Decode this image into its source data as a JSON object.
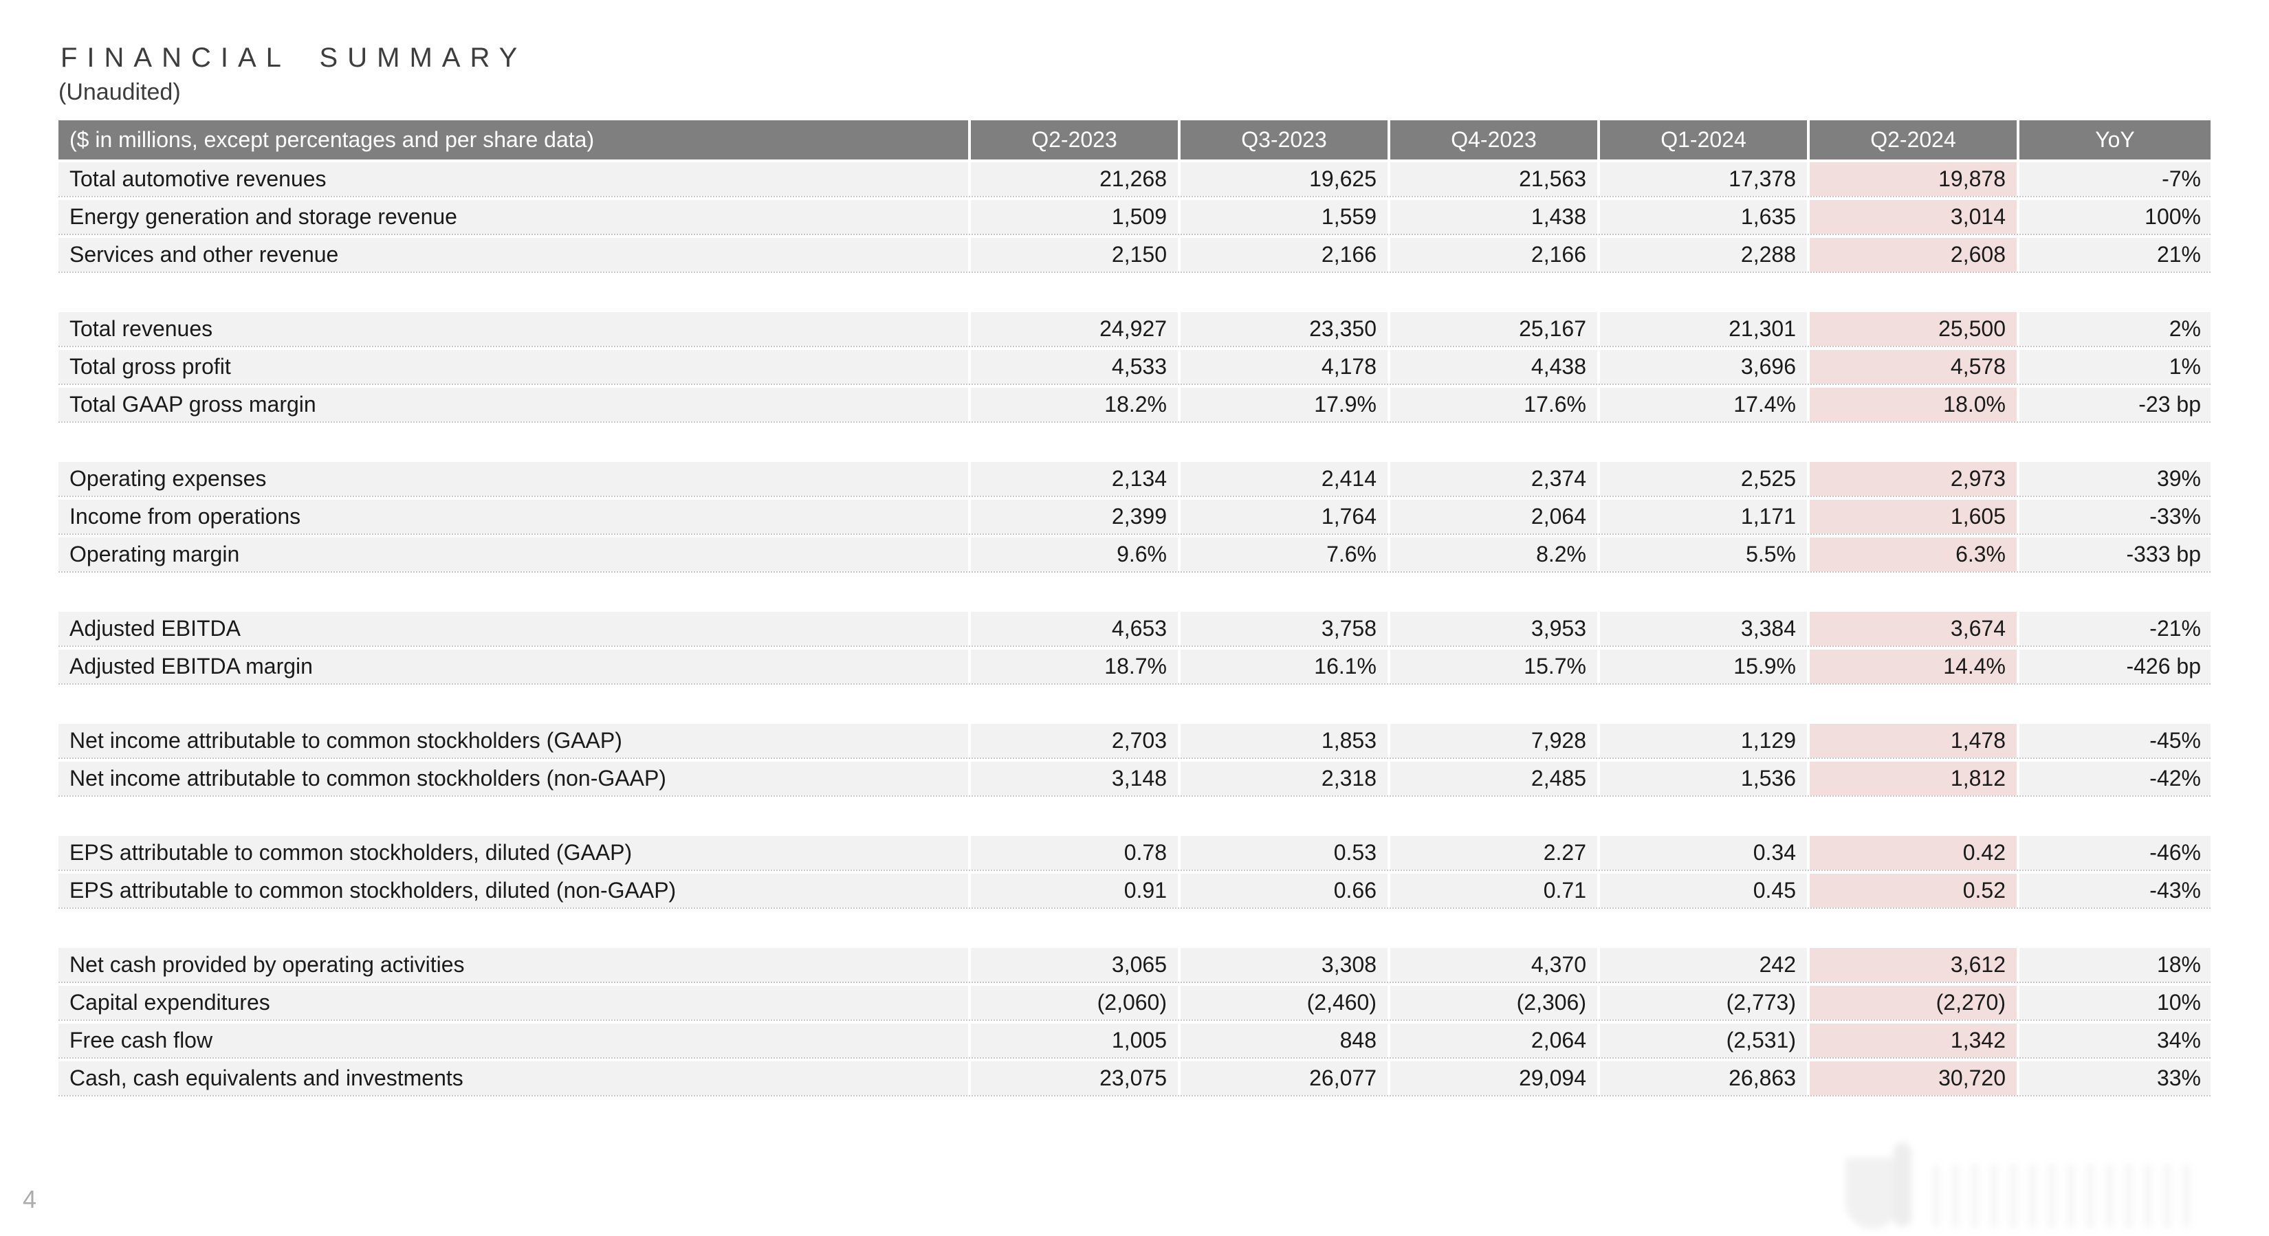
{
  "title": "FINANCIAL SUMMARY",
  "subtitle": "(Unaudited)",
  "page_number": "4",
  "colors": {
    "header_bg": "#7f7f7f",
    "header_text": "#ffffff",
    "row_bg": "#f2f2f2",
    "highlight_bg": "#f2dedc",
    "title_text": "#3d3d3d"
  },
  "table": {
    "header": [
      "($ in millions, except percentages and per share data)",
      "Q2-2023",
      "Q3-2023",
      "Q4-2023",
      "Q1-2024",
      "Q2-2024",
      "YoY"
    ],
    "highlight_column": "Q2-2024",
    "groups": [
      {
        "rows": [
          {
            "label": "Total automotive revenues",
            "values": [
              "21,268",
              "19,625",
              "21,563",
              "17,378",
              "19,878",
              "-7%"
            ]
          },
          {
            "label": "Energy generation and storage revenue",
            "values": [
              "1,509",
              "1,559",
              "1,438",
              "1,635",
              "3,014",
              "100%"
            ]
          },
          {
            "label": "Services and other revenue",
            "values": [
              "2,150",
              "2,166",
              "2,166",
              "2,288",
              "2,608",
              "21%"
            ]
          }
        ]
      },
      {
        "rows": [
          {
            "label": "Total revenues",
            "values": [
              "24,927",
              "23,350",
              "25,167",
              "21,301",
              "25,500",
              "2%"
            ]
          },
          {
            "label": "Total gross profit",
            "values": [
              "4,533",
              "4,178",
              "4,438",
              "3,696",
              "4,578",
              "1%"
            ]
          },
          {
            "label": "Total GAAP gross margin",
            "values": [
              "18.2%",
              "17.9%",
              "17.6%",
              "17.4%",
              "18.0%",
              "-23 bp"
            ]
          }
        ]
      },
      {
        "rows": [
          {
            "label": "Operating expenses",
            "values": [
              "2,134",
              "2,414",
              "2,374",
              "2,525",
              "2,973",
              "39%"
            ]
          },
          {
            "label": "Income from operations",
            "values": [
              "2,399",
              "1,764",
              "2,064",
              "1,171",
              "1,605",
              "-33%"
            ]
          },
          {
            "label": "Operating margin",
            "values": [
              "9.6%",
              "7.6%",
              "8.2%",
              "5.5%",
              "6.3%",
              "-333 bp"
            ]
          }
        ]
      },
      {
        "rows": [
          {
            "label": "Adjusted EBITDA",
            "values": [
              "4,653",
              "3,758",
              "3,953",
              "3,384",
              "3,674",
              "-21%"
            ]
          },
          {
            "label": "Adjusted EBITDA margin",
            "values": [
              "18.7%",
              "16.1%",
              "15.7%",
              "15.9%",
              "14.4%",
              "-426 bp"
            ]
          }
        ]
      },
      {
        "rows": [
          {
            "label": "Net income attributable to common stockholders (GAAP)",
            "values": [
              "2,703",
              "1,853",
              "7,928",
              "1,129",
              "1,478",
              "-45%"
            ]
          },
          {
            "label": "Net income attributable to common stockholders (non-GAAP)",
            "values": [
              "3,148",
              "2,318",
              "2,485",
              "1,536",
              "1,812",
              "-42%"
            ]
          }
        ]
      },
      {
        "rows": [
          {
            "label": "EPS attributable to common stockholders, diluted (GAAP)",
            "values": [
              "0.78",
              "0.53",
              "2.27",
              "0.34",
              "0.42",
              "-46%"
            ]
          },
          {
            "label": "EPS attributable to common stockholders, diluted (non-GAAP)",
            "values": [
              "0.91",
              "0.66",
              "0.71",
              "0.45",
              "0.52",
              "-43%"
            ]
          }
        ]
      },
      {
        "rows": [
          {
            "label": "Net cash provided by operating activities",
            "values": [
              "3,065",
              "3,308",
              "4,370",
              "242",
              "3,612",
              "18%"
            ]
          },
          {
            "label": "Capital expenditures",
            "values": [
              "(2,060)",
              "(2,460)",
              "(2,306)",
              "(2,773)",
              "(2,270)",
              "10%"
            ]
          },
          {
            "label": "Free cash flow",
            "values": [
              "1,005",
              "848",
              "2,064",
              "(2,531)",
              "1,342",
              "34%"
            ]
          },
          {
            "label": "Cash, cash equivalents and investments",
            "values": [
              "23,075",
              "26,077",
              "29,094",
              "26,863",
              "30,720",
              "33%"
            ]
          }
        ]
      }
    ]
  }
}
